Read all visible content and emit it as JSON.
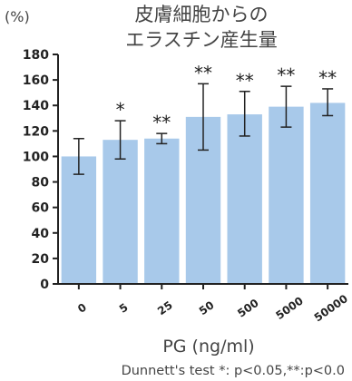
{
  "chart_data": {
    "type": "bar",
    "title_lines": [
      "皮膚細胞からの",
      "エラスチン産生量"
    ],
    "ylabel": "(%)",
    "xlabel": "PG (ng/ml)",
    "footnote": "Dunnett's test *: p<0.05,**:p<0.0",
    "categories": [
      "0",
      "5",
      "25",
      "50",
      "500",
      "5000",
      "50000"
    ],
    "values": [
      100,
      113,
      114,
      131,
      133,
      139,
      142
    ],
    "error_low": [
      86,
      98,
      110,
      105,
      116,
      123,
      132
    ],
    "error_high": [
      114,
      128,
      118,
      157,
      151,
      155,
      153
    ],
    "significance": [
      "",
      "*",
      "**",
      "**",
      "**",
      "**",
      "**"
    ],
    "yticks": [
      0,
      20,
      40,
      60,
      80,
      100,
      120,
      140,
      160,
      180
    ],
    "ylim": [
      0,
      180
    ],
    "bar_color": "#a8c9ea",
    "grid": false,
    "legend": "none"
  }
}
